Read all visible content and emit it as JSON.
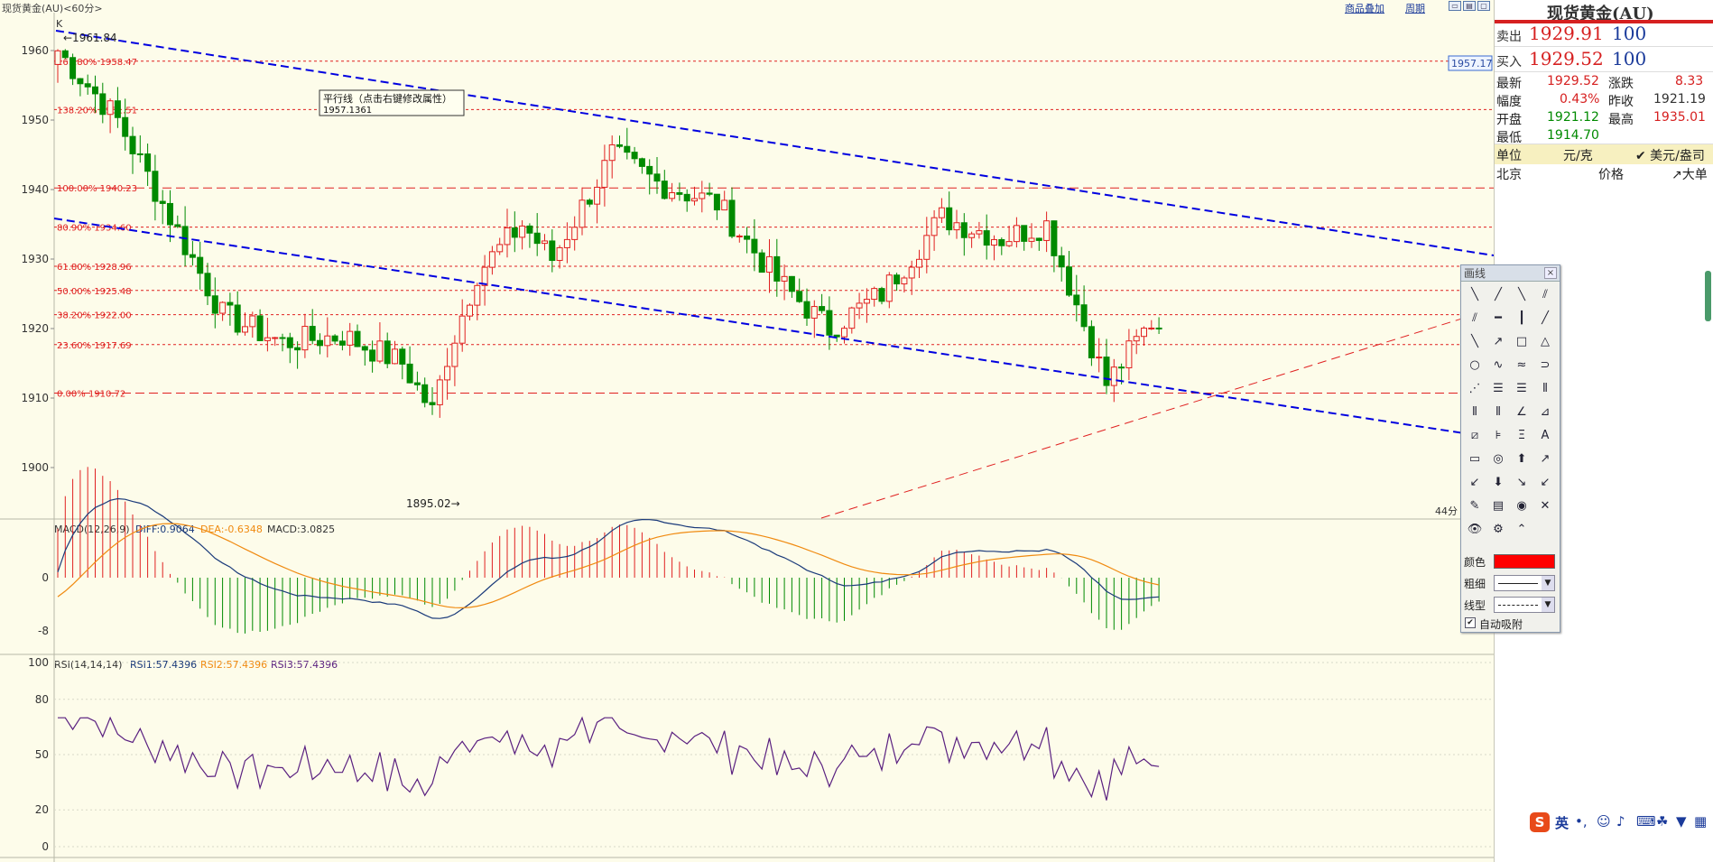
{
  "window": {
    "title": "现货黄金(AU)<60分>",
    "links": [
      "商品叠加",
      "周期"
    ],
    "win_buttons": [
      "▭",
      "▤",
      "▢",
      "▣"
    ]
  },
  "main_chart": {
    "k_label": "K",
    "high_label": "←1961.84",
    "low_label": "1895.02→",
    "price_box": "1957.17",
    "parallel_label": "平行线（点击右键修改属性）",
    "parallel_value": "1957.1361",
    "period_label": "44分",
    "y_ticks": [
      "1960",
      "1950",
      "1940",
      "1930",
      "1920",
      "1910",
      "1900"
    ],
    "fib_levels": [
      {
        "label": "161.80% 1958.47",
        "value": 1958.47
      },
      {
        "label": "138.20% 1951.51",
        "value": 1951.51
      },
      {
        "label": "100.00% 1940.23",
        "value": 1940.23
      },
      {
        "label": "80.90% 1934.60",
        "value": 1934.6
      },
      {
        "label": "61.80% 1928.96",
        "value": 1928.96
      },
      {
        "label": "50.00% 1925.48",
        "value": 1925.48
      },
      {
        "label": "38.20% 1922.00",
        "value": 1922.0
      },
      {
        "label": "23.60% 1917.69",
        "value": 1917.69
      },
      {
        "label": "0.00% 1910.72",
        "value": 1910.72
      }
    ]
  },
  "macd": {
    "title": "MACD(12,26,9)",
    "diff": "DIFF:0.9064",
    "dea": "DEA:-0.6348",
    "macd": "MACD:3.0825",
    "y_ticks": [
      "0",
      "-8"
    ]
  },
  "rsi": {
    "title": "RSI(14,14,14)",
    "rsi1": "RSI1:57.4396",
    "rsi2": "RSI2:57.4396",
    "rsi3": "RSI3:57.4396",
    "y_ticks": [
      "100",
      "80",
      "50",
      "20",
      "0"
    ]
  },
  "quote": {
    "title": "现货黄金(AU)",
    "sell_label": "卖出",
    "sell_price": "1929.91",
    "sell_qty": "100",
    "buy_label": "买入",
    "buy_price": "1929.52",
    "buy_qty": "100",
    "latest_label": "最新",
    "latest": "1929.52",
    "change_label": "涨跌",
    "change": "8.33",
    "amp_label": "幅度",
    "amp": "0.43%",
    "prev_label": "昨收",
    "prev": "1921.19",
    "open_label": "开盘",
    "open": "1921.12",
    "high_label": "最高",
    "high": "1935.01",
    "low_label": "最低",
    "low": "1914.70",
    "unit_label": "单位",
    "unit_value": "元/克",
    "unit_alt": "✔ 美元/盎司",
    "col_place": "北京",
    "col_price": "价格",
    "col_big": "↗大单"
  },
  "toolbox": {
    "title": "画线",
    "close": "×",
    "color_label": "颜色",
    "width_label": "粗细",
    "style_label": "线型",
    "auto_label": "自动吸附",
    "color": "#ff0000",
    "icons": [
      "line-segment-icon",
      "ray-icon",
      "line-icon",
      "parallel-icon",
      "double-parallel-icon",
      "horizontal-line-icon",
      "vertical-line-icon",
      "diagonal-line-icon",
      "arrow-line-icon",
      "arrow-up-right-icon",
      "rectangle-icon",
      "triangle-icon",
      "ellipse-icon",
      "curve-icon",
      "wave-icon",
      "arc-icon",
      "fib-fan-icon",
      "fib-retrace-icon",
      "fib-ext-icon",
      "fib-time-icon",
      "gann-icon",
      "cycle-icon",
      "angle-icon",
      "gann-fan-icon",
      "speed-line-icon",
      "resistance-icon",
      "fib-text-icon",
      "text-icon",
      "ruler-icon",
      "target-icon",
      "up-arrow-icon",
      "up-right-arrow-icon",
      "down-left-arrow-icon",
      "down-arrow-icon",
      "down-right-arrow-icon",
      "down-left-green-icon",
      "pencil-icon",
      "stats-icon",
      "hide-icon",
      "delete-icon",
      "eye-icon",
      "settings-icon",
      "expand-icon"
    ]
  },
  "ime": {
    "lang": "英",
    "punct": "•,"
  },
  "colors": {
    "up": "#e02020",
    "down": "#008a00",
    "channel": "#0000e0",
    "fib": "#e02020",
    "diff": "#1a3a7a",
    "dea": "#f08a10",
    "rsi": "#5a2080",
    "bg": "#fdfcea"
  }
}
